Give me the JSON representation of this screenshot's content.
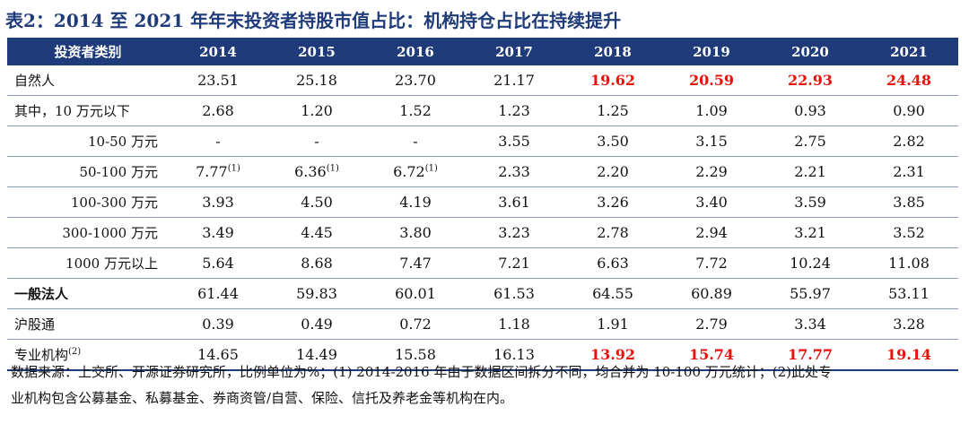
{
  "title": "表2：2014 至 2021 年年末投资者持股市值占比：机构持仓占比在持续提升",
  "header": {
    "label": "投资者类别",
    "years": [
      "2014",
      "2015",
      "2016",
      "2017",
      "2018",
      "2019",
      "2020",
      "2021"
    ]
  },
  "rows": [
    {
      "label": "自然人",
      "values": [
        "23.51",
        "25.18",
        "23.70",
        "21.17",
        "19.62",
        "20.59",
        "22.93",
        "24.48"
      ],
      "highlight_from": 4
    },
    {
      "label": "其中，10 万元以下",
      "values": [
        "2.68",
        "1.20",
        "1.52",
        "1.23",
        "1.25",
        "1.09",
        "0.93",
        "0.90"
      ]
    },
    {
      "label": "10-50 万元",
      "indent": true,
      "values": [
        "-",
        "-",
        "-",
        "3.55",
        "3.50",
        "3.15",
        "2.75",
        "2.82"
      ]
    },
    {
      "label": "50-100 万元",
      "indent": true,
      "values": [
        "7.77",
        "6.36",
        "6.72",
        "2.33",
        "2.20",
        "2.29",
        "2.21",
        "2.31"
      ],
      "notes": [
        "(1)",
        "(1)",
        "(1)",
        "",
        "",
        "",
        "",
        ""
      ]
    },
    {
      "label": "100-300 万元",
      "indent": true,
      "values": [
        "3.93",
        "4.50",
        "4.19",
        "3.61",
        "3.26",
        "3.40",
        "3.59",
        "3.85"
      ]
    },
    {
      "label": "300-1000 万元",
      "indent": true,
      "values": [
        "3.49",
        "4.45",
        "3.80",
        "3.23",
        "2.78",
        "2.94",
        "3.21",
        "3.52"
      ]
    },
    {
      "label": "1000 万元以上",
      "indent": true,
      "values": [
        "5.64",
        "8.68",
        "7.47",
        "7.21",
        "6.63",
        "7.72",
        "10.24",
        "11.08"
      ]
    },
    {
      "label": "一般法人",
      "bold": true,
      "values": [
        "61.44",
        "59.83",
        "60.01",
        "61.53",
        "64.55",
        "60.89",
        "55.97",
        "53.11"
      ]
    },
    {
      "label": "沪股通",
      "values": [
        "0.39",
        "0.49",
        "0.72",
        "1.18",
        "1.91",
        "2.79",
        "3.34",
        "3.28"
      ]
    },
    {
      "label": "专业机构",
      "label_note": "(2)",
      "values": [
        "14.65",
        "14.49",
        "15.58",
        "16.13",
        "13.92",
        "15.74",
        "17.77",
        "19.14"
      ],
      "highlight_from": 4
    }
  ],
  "footnote_line1": "数据来源：上交所、开源证券研究所，比例单位为%；(1) 2014-2016 年由于数据区间拆分不同，均合并为 10-100 万元统计；(2)此处专",
  "footnote_line2": "业机构包含公募基金、私募基金、券商资管/自营、保险、信托及养老金等机构在内。",
  "colors": {
    "header_bg": "#1f3b7a",
    "highlight": "#e8120c"
  }
}
